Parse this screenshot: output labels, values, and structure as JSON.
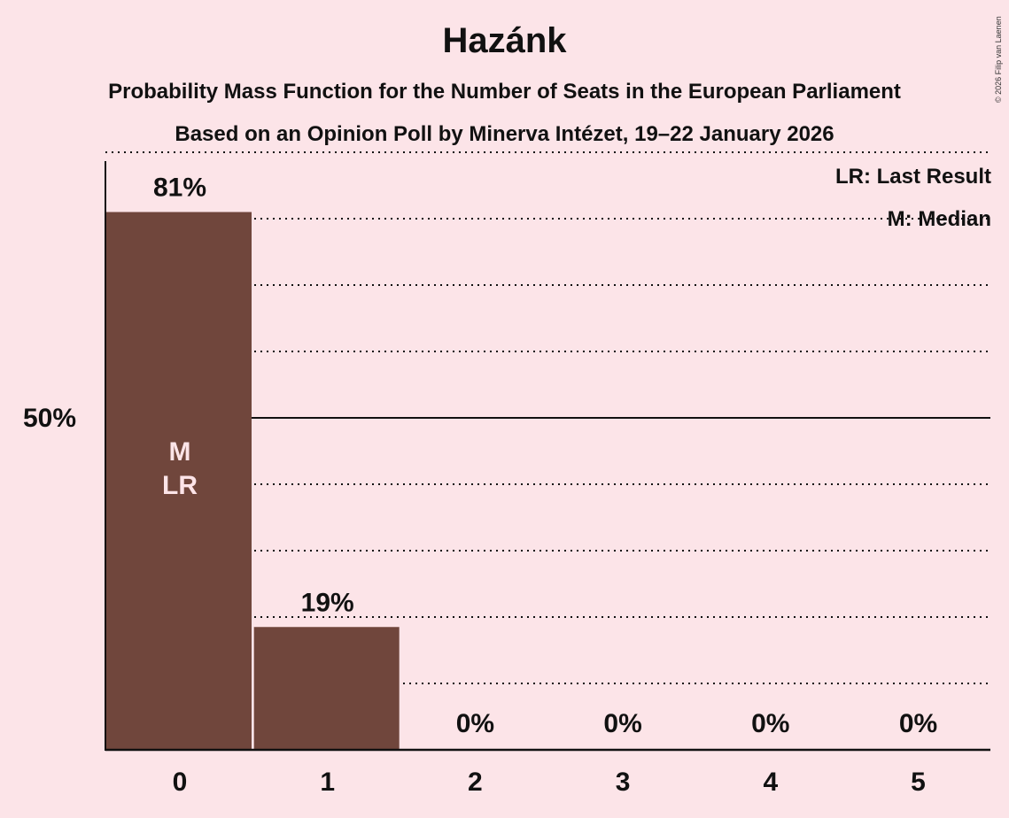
{
  "title": "Hazánk",
  "subtitle": "Probability Mass Function for the Number of Seats in the European Parliament",
  "subtitle2": "Based on an Opinion Poll by Minerva Intézet, 19–22 January 2026",
  "copyright": "© 2026 Filip van Laenen",
  "legend": {
    "last_result": "LR: Last Result",
    "median": "M: Median"
  },
  "y_axis_label": "50%",
  "colors": {
    "background": "#fce4e8",
    "bar": "#70463c",
    "bar_text": "#fce4e8",
    "text": "#111111"
  },
  "bars": [
    {
      "seats": "0",
      "label": "81%",
      "value": 81,
      "markers": [
        "M",
        "LR"
      ]
    },
    {
      "seats": "1",
      "label": "19%",
      "value": 18.5,
      "markers": []
    },
    {
      "seats": "2",
      "label": "0%",
      "value": 0,
      "markers": []
    },
    {
      "seats": "3",
      "label": "0%",
      "value": 0,
      "markers": []
    },
    {
      "seats": "4",
      "label": "0%",
      "value": 0,
      "markers": []
    },
    {
      "seats": "5",
      "label": "0%",
      "value": 0,
      "markers": []
    }
  ],
  "chart_data": {
    "type": "bar",
    "title": "Hazánk",
    "subtitle": "Probability Mass Function for the Number of Seats in the European Parliament — Based on an Opinion Poll by Minerva Intézet, 19–22 January 2026",
    "categories": [
      "0",
      "1",
      "2",
      "3",
      "4",
      "5"
    ],
    "values": [
      81,
      19,
      0,
      0,
      0,
      0
    ],
    "data_labels": [
      "81%",
      "19%",
      "0%",
      "0%",
      "0%",
      "0%"
    ],
    "xlabel": "",
    "ylabel": "",
    "ylim": [
      0,
      100
    ],
    "yticks": [
      "50%"
    ],
    "grid": {
      "dotted_every": 10,
      "solid_at": 50
    },
    "annotations": [
      {
        "category": "0",
        "text": "M",
        "meaning": "Median"
      },
      {
        "category": "0",
        "text": "LR",
        "meaning": "Last Result"
      }
    ],
    "legend": [
      "LR: Last Result",
      "M: Median"
    ],
    "legend_position": "top-right"
  }
}
